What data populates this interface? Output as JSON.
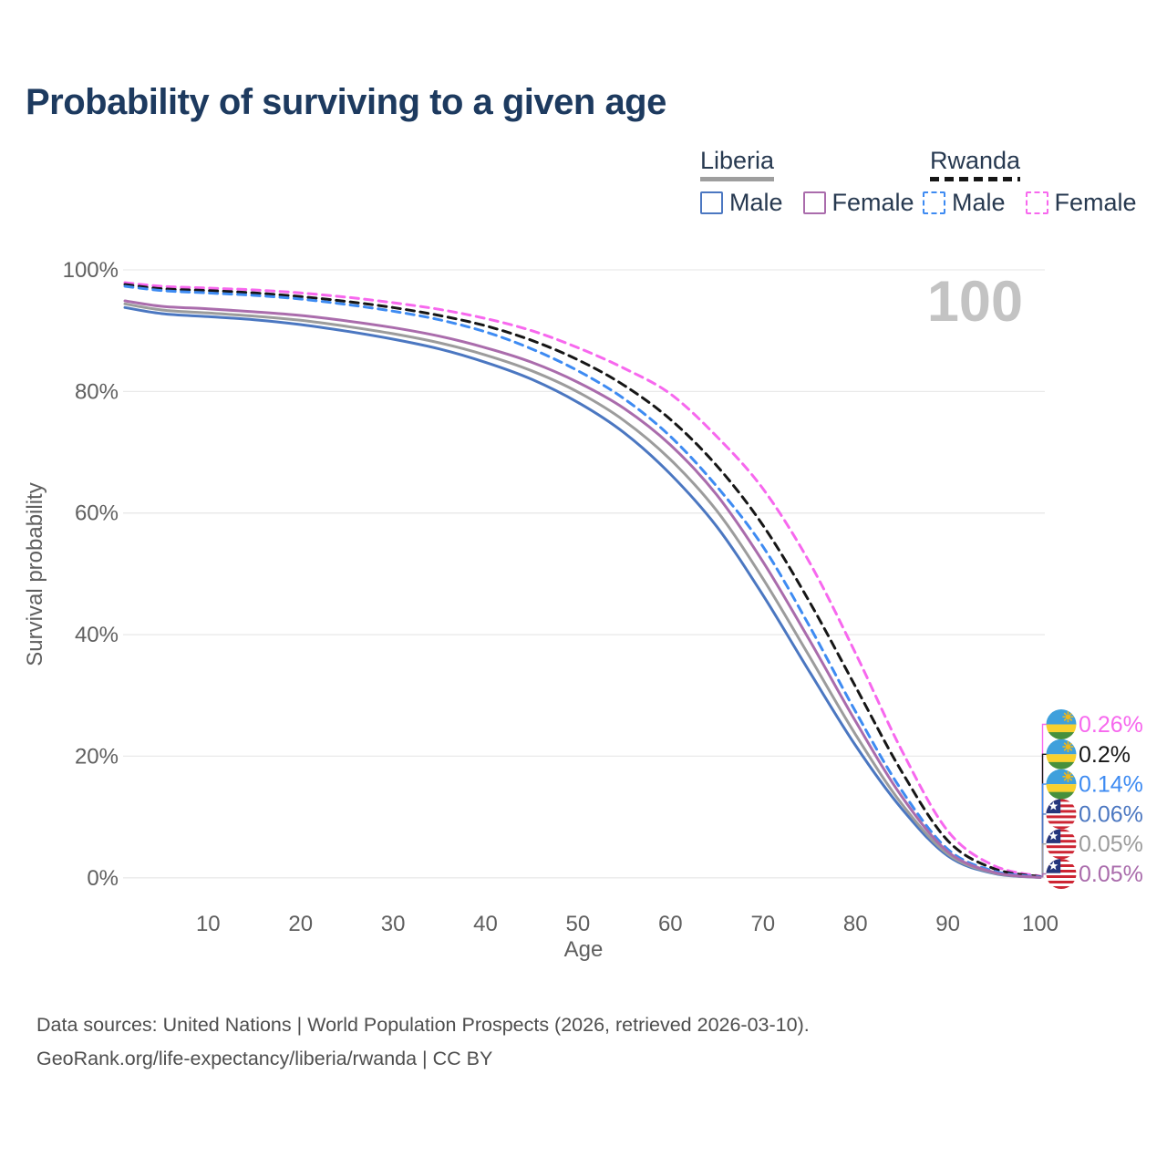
{
  "title": "Probability of surviving to a given age",
  "age_counter": "100",
  "legend": {
    "groups": [
      {
        "country": "Liberia",
        "line_style": "solid",
        "swatch_color": "#9e9e9e",
        "items": [
          {
            "label": "Male",
            "color": "#4b77c1"
          },
          {
            "label": "Female",
            "color": "#aa6cac"
          }
        ]
      },
      {
        "country": "Rwanda",
        "line_style": "dashed",
        "swatch_color": "#161616",
        "items": [
          {
            "label": "Male",
            "color": "#3e8bf2"
          },
          {
            "label": "Female",
            "color": "#f768ee"
          }
        ]
      }
    ]
  },
  "chart_data": {
    "type": "line",
    "title": "Probability of surviving to a given age",
    "xlabel": "Age",
    "ylabel": "Survival probability",
    "xlim": [
      1,
      100
    ],
    "ylim": [
      0,
      100
    ],
    "grid": "horizontal-only",
    "legend_position": "top-right",
    "x_ticks": [
      "10",
      "20",
      "30",
      "40",
      "50",
      "60",
      "70",
      "80",
      "90",
      "100"
    ],
    "y_ticks": [
      "100%",
      "80%",
      "60%",
      "40%",
      "20%",
      "0%"
    ],
    "x": [
      1,
      5,
      10,
      15,
      20,
      25,
      30,
      35,
      40,
      45,
      50,
      55,
      60,
      65,
      70,
      75,
      80,
      85,
      90,
      95,
      100
    ],
    "series": [
      {
        "name": "Rwanda Female",
        "country": "Rwanda",
        "sex": "Female",
        "color": "#f768ee",
        "dashed": true,
        "flag": "rwanda",
        "end_label": "0.26%",
        "values": [
          97.9,
          97.3,
          97.0,
          96.7,
          96.2,
          95.5,
          94.6,
          93.5,
          92.0,
          90.0,
          87.2,
          83.8,
          79.6,
          72.6,
          64.0,
          52.0,
          37.0,
          21.0,
          7.7,
          2.0,
          0.26
        ]
      },
      {
        "name": "Rwanda Total",
        "country": "Rwanda",
        "sex": "Total",
        "color": "#161616",
        "dashed": true,
        "flag": "rwanda",
        "end_label": "0.2%",
        "values": [
          97.6,
          96.9,
          96.6,
          96.2,
          95.6,
          94.8,
          93.8,
          92.5,
          90.8,
          88.4,
          85.2,
          81.0,
          75.4,
          67.8,
          58.0,
          45.5,
          31.5,
          17.5,
          6.1,
          1.5,
          0.2
        ]
      },
      {
        "name": "Rwanda Male",
        "country": "Rwanda",
        "sex": "Male",
        "color": "#3e8bf2",
        "dashed": true,
        "flag": "rwanda",
        "end_label": "0.14%",
        "values": [
          97.3,
          96.6,
          96.2,
          95.8,
          95.2,
          94.3,
          93.2,
          91.8,
          89.8,
          87.0,
          83.4,
          78.8,
          72.6,
          64.4,
          54.5,
          41.5,
          27.4,
          14.4,
          4.7,
          1.1,
          0.14
        ]
      },
      {
        "name": "Liberia Male",
        "country": "Liberia",
        "sex": "Male",
        "color": "#4b77c1",
        "dashed": false,
        "flag": "liberia",
        "end_label": "0.06%",
        "values": [
          93.8,
          92.8,
          92.3,
          91.8,
          91.0,
          89.9,
          88.6,
          87.0,
          84.8,
          82.0,
          78.2,
          73.2,
          66.4,
          57.8,
          46.5,
          34.0,
          21.8,
          11.4,
          3.6,
          0.7,
          0.06
        ]
      },
      {
        "name": "Liberia Total",
        "country": "Liberia",
        "sex": "Total",
        "color": "#9c9c9c",
        "dashed": false,
        "flag": "liberia",
        "end_label": "0.05%",
        "values": [
          94.4,
          93.4,
          92.9,
          92.4,
          91.7,
          90.7,
          89.5,
          88.0,
          86.0,
          83.4,
          79.9,
          75.2,
          68.8,
          60.4,
          49.2,
          36.5,
          23.6,
          12.2,
          3.9,
          0.8,
          0.05
        ]
      },
      {
        "name": "Liberia Female",
        "country": "Liberia",
        "sex": "Female",
        "color": "#aa6cac",
        "dashed": false,
        "flag": "liberia",
        "end_label": "0.05%",
        "values": [
          94.9,
          94.0,
          93.6,
          93.1,
          92.5,
          91.6,
          90.5,
          89.1,
          87.2,
          84.8,
          81.5,
          77.2,
          71.2,
          63.0,
          52.0,
          39.2,
          25.8,
          13.4,
          4.3,
          0.9,
          0.05
        ]
      }
    ]
  },
  "footer": {
    "line1": "Data sources: United Nations | World Population Prospects (2026, retrieved 2026-03-10).",
    "line2": "GeoRank.org/life-expectancy/liberia/rwanda | CC BY"
  },
  "colors": {
    "title_text": "#1d3a5f",
    "axis_text": "#5f5f5f",
    "grid": "#e9e9e9",
    "age_counter": "#c3c3c3",
    "legend_text": "#273950"
  }
}
